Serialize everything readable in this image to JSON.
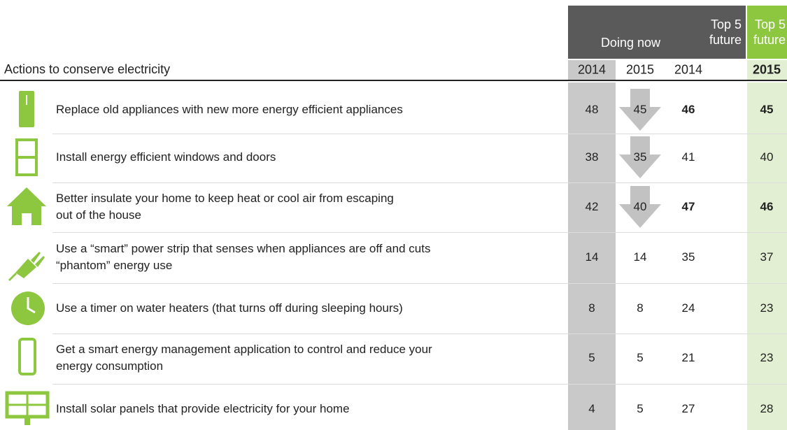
{
  "header": {
    "groups": [
      {
        "text": "Doing now"
      },
      {
        "lines": [
          "Top 5",
          "future"
        ]
      },
      {
        "lines": [
          "Top 5",
          "future"
        ]
      }
    ],
    "row_title": "Actions to conserve electricity",
    "years": [
      "2014",
      "2015",
      "2014",
      "2015"
    ]
  },
  "rows": [
    {
      "lines": [
        "Replace old appliances with new more energy efficient appliances"
      ],
      "values": [
        48,
        45,
        46,
        45
      ],
      "bold": [
        false,
        false,
        true,
        true
      ],
      "arrow_down": true
    },
    {
      "lines": [
        "Install energy efficient windows and doors"
      ],
      "values": [
        38,
        35,
        41,
        40
      ],
      "bold": [
        false,
        false,
        false,
        false
      ],
      "arrow_down": true
    },
    {
      "lines": [
        "Better insulate your home to keep heat or cool air from escaping",
        "out of the house"
      ],
      "values": [
        42,
        40,
        47,
        46
      ],
      "bold": [
        false,
        false,
        true,
        true
      ],
      "arrow_down": true
    },
    {
      "lines": [
        "Use a “smart” power strip that senses when appliances are off and cuts",
        "“phantom” energy use"
      ],
      "values": [
        14,
        14,
        35,
        37
      ],
      "bold": [
        false,
        false,
        false,
        false
      ],
      "arrow_down": false
    },
    {
      "lines": [
        "Use a timer on water heaters (that turns off during sleeping hours)"
      ],
      "values": [
        8,
        8,
        24,
        23
      ],
      "bold": [
        false,
        false,
        false,
        false
      ],
      "arrow_down": false
    },
    {
      "lines": [
        "Get a smart energy management application to control and reduce your",
        "energy consumption"
      ],
      "values": [
        5,
        5,
        21,
        23
      ],
      "bold": [
        false,
        false,
        false,
        false
      ],
      "arrow_down": false
    },
    {
      "lines": [
        "Install solar panels that provide electricity for your home"
      ],
      "values": [
        4,
        5,
        27,
        28
      ],
      "bold": [
        false,
        false,
        false,
        false
      ],
      "arrow_down": false
    }
  ]
}
